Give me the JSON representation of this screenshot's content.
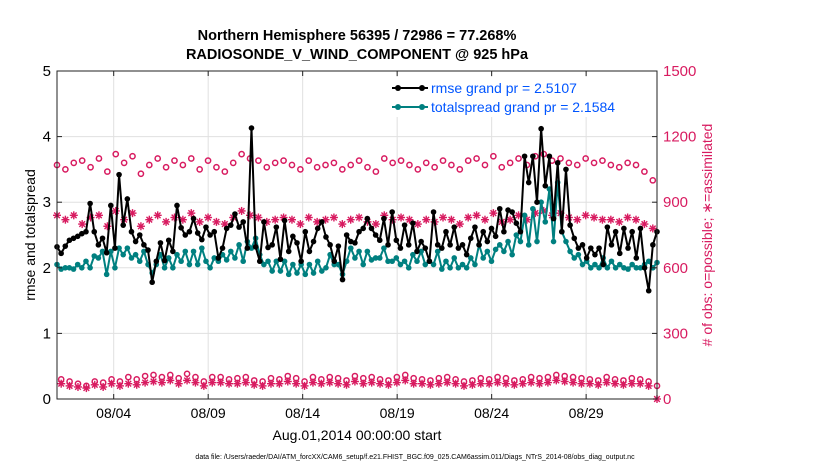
{
  "chart_data": {
    "type": "line",
    "title": "Northern Hemisphere 56395 / 72986 = 77.268%",
    "subtitle": "RADIOSONDE_V_WIND_COMPONENT @ 925 hPa",
    "xlabel": "Aug.01,2014 00:00:00 start",
    "ylabel_left": "rmse and totalspread",
    "ylabel_right": "# of obs: o=possible; ∗=assimilated",
    "footnote": "data file: /Users/raeder/DAI/ATM_forcXX/CAM6_setup/f.e21.FHIST_BGC.f09_025.CAM6assim.011/Diags_NTrS_2014-08/obs_diag_output.nc",
    "x_range": [
      1,
      32.75
    ],
    "x_ticks": [
      4,
      9,
      14,
      19,
      24,
      29
    ],
    "x_tick_labels": [
      "08/04",
      "08/09",
      "08/14",
      "08/19",
      "08/24",
      "08/29"
    ],
    "ylim_left": [
      0,
      5
    ],
    "yticks_left": [
      "0",
      "1",
      "2",
      "3",
      "4",
      "5"
    ],
    "ylim_right": [
      0,
      1500
    ],
    "yticks_right": [
      "0",
      "300",
      "600",
      "900",
      "1200",
      "1500"
    ],
    "legend_position": "top-right",
    "colors": {
      "rmse": "#000000",
      "spread": "#008080",
      "obs": "#d81b60",
      "ylabel_right": "#d81b60",
      "legend_text": "#0055ff"
    },
    "series": [
      {
        "name": "rmse grand pr = 2.5107",
        "axis": "left",
        "values": [
          2.32,
          2.22,
          2.33,
          2.42,
          2.45,
          2.48,
          2.52,
          2.55,
          2.98,
          2.55,
          2.35,
          2.45,
          2.23,
          2.95,
          2.3,
          3.42,
          2.65,
          3.05,
          2.55,
          2.4,
          2.5,
          2.35,
          2.27,
          1.78,
          2.1,
          2.38,
          2.11,
          2.42,
          2.25,
          2.95,
          2.61,
          2.5,
          2.55,
          2.75,
          2.53,
          2.43,
          2.62,
          2.5,
          2.55,
          2.15,
          2.3,
          2.6,
          2.65,
          2.82,
          2.62,
          2.7,
          2.3,
          4.13,
          2.32,
          2.1,
          2.7,
          2.31,
          2.35,
          2.62,
          2.13,
          2.72,
          2.25,
          2.48,
          2.38,
          2.1,
          2.55,
          2.25,
          2.4,
          2.6,
          2.7,
          2.47,
          2.35,
          2.1,
          2.33,
          1.82,
          2.5,
          2.4,
          2.38,
          2.55,
          2.6,
          2.75,
          2.6,
          2.5,
          2.42,
          2.75,
          2.35,
          2.85,
          2.42,
          2.3,
          2.65,
          2.35,
          2.68,
          2.25,
          2.4,
          2.3,
          2.1,
          2.85,
          2.35,
          2.3,
          2.55,
          2.35,
          2.62,
          2.3,
          2.35,
          2.2,
          2.45,
          2.62,
          2.35,
          2.55,
          2.4,
          2.6,
          2.48,
          2.9,
          2.55,
          2.88,
          2.85,
          2.68,
          2.55,
          3.7,
          3.3,
          3.7,
          3.0,
          4.12,
          3.25,
          3.7,
          2.75,
          3.6,
          2.55,
          3.5,
          2.65,
          2.45,
          2.3,
          2.35,
          2.15,
          2.3,
          2.2,
          2.3,
          2.05,
          2.62,
          2.35,
          2.55,
          2.22,
          2.6,
          2.3,
          2.55,
          2.15,
          2.6,
          2.0,
          1.65,
          2.35,
          2.55
        ]
      },
      {
        "name": "totalspread grand pr = 2.1584",
        "axis": "left",
        "values": [
          2.05,
          1.98,
          2.0,
          2.0,
          1.98,
          2.05,
          2.0,
          2.1,
          2.0,
          2.18,
          2.15,
          2.25,
          1.9,
          2.25,
          2.0,
          2.3,
          2.2,
          2.3,
          2.15,
          2.2,
          2.1,
          2.25,
          2.05,
          1.92,
          2.05,
          2.2,
          2.0,
          2.15,
          2.0,
          2.2,
          2.1,
          2.25,
          2.05,
          2.25,
          2.05,
          2.3,
          2.1,
          2.0,
          2.15,
          2.1,
          2.2,
          2.12,
          2.25,
          2.15,
          2.35,
          2.1,
          2.4,
          2.3,
          2.45,
          2.2,
          2.05,
          2.1,
          1.95,
          2.1,
          1.95,
          2.1,
          1.9,
          2.05,
          1.92,
          2.05,
          1.9,
          2.05,
          1.92,
          2.1,
          1.95,
          2.0,
          2.2,
          2.05,
          2.05,
          1.9,
          2.1,
          2.3,
          2.15,
          2.25,
          2.05,
          2.25,
          2.12,
          2.15,
          2.15,
          2.3,
          2.1,
          2.1,
          2.15,
          2.05,
          2.1,
          2.0,
          2.2,
          2.1,
          2.25,
          2.05,
          2.1,
          2.05,
          2.25,
          1.98,
          2.1,
          2.0,
          2.15,
          2.0,
          2.05,
          2.0,
          2.15,
          2.05,
          2.35,
          2.15,
          2.25,
          2.1,
          2.28,
          2.35,
          2.25,
          2.4,
          2.2,
          2.5,
          2.4,
          2.8,
          2.35,
          2.9,
          2.4,
          3.0,
          2.7,
          3.2,
          2.4,
          3.3,
          2.55,
          2.4,
          2.25,
          2.15,
          2.2,
          2.05,
          2.1,
          2.0,
          2.05,
          2.0,
          2.15,
          2.0,
          2.1,
          2.0,
          2.05,
          2.0,
          1.98,
          2.05,
          2.0,
          2.0,
          2.05,
          2.1,
          2.0,
          2.08
        ]
      },
      {
        "name": "possible",
        "axis": "right",
        "marker": "o",
        "values": [
          1070,
          90,
          1050,
          80,
          1080,
          70,
          1090,
          60,
          1060,
          80,
          1100,
          75,
          1040,
          90,
          1120,
          80,
          1080,
          100,
          1110,
          90,
          1030,
          105,
          1070,
          110,
          1100,
          100,
          1060,
          110,
          1090,
          95,
          1070,
          115,
          1100,
          100,
          1050,
          80,
          1090,
          100,
          1060,
          100,
          1040,
          90,
          1080,
          95,
          1120,
          100,
          1100,
          85,
          1090,
          80,
          1060,
          95,
          1080,
          90,
          1090,
          105,
          1070,
          95,
          1050,
          80,
          1090,
          100,
          1060,
          90,
          1070,
          100,
          1080,
          95,
          1050,
          85,
          1070,
          105,
          1090,
          95,
          1060,
          100,
          1040,
          90,
          1100,
          85,
          1080,
          100,
          1090,
          110,
          1070,
          95,
          1050,
          90,
          1080,
          85,
          1060,
          95,
          1090,
          100,
          1070,
          90,
          1050,
          80,
          1090,
          85,
          1100,
          95,
          1070,
          90,
          1110,
          100,
          1060,
          95,
          1080,
          85,
          1100,
          90,
          1070,
          100,
          1110,
          95,
          1120,
          100,
          1090,
          110,
          1100,
          105,
          1080,
          100,
          1070,
          95,
          1100,
          90,
          1080,
          85,
          1090,
          100,
          1070,
          90,
          1060,
          85,
          1080,
          95,
          1070,
          90,
          1040,
          80,
          1000,
          60
        ]
      },
      {
        "name": "assimilated",
        "axis": "right",
        "marker": "*",
        "values": [
          840,
          70,
          820,
          60,
          840,
          55,
          800,
          50,
          830,
          65,
          840,
          55,
          790,
          70,
          860,
          60,
          820,
          70,
          850,
          65,
          790,
          75,
          820,
          80,
          840,
          75,
          810,
          85,
          830,
          70,
          820,
          85,
          850,
          75,
          810,
          60,
          830,
          75,
          810,
          75,
          800,
          70,
          830,
          70,
          860,
          75,
          840,
          65,
          830,
          60,
          810,
          70,
          820,
          70,
          830,
          80,
          820,
          70,
          800,
          60,
          830,
          75,
          810,
          70,
          820,
          75,
          830,
          70,
          800,
          65,
          820,
          80,
          830,
          70,
          810,
          75,
          800,
          70,
          840,
          65,
          820,
          75,
          830,
          85,
          820,
          70,
          800,
          70,
          820,
          65,
          810,
          70,
          830,
          75,
          820,
          70,
          800,
          60,
          830,
          65,
          840,
          70,
          820,
          70,
          850,
          75,
          810,
          70,
          820,
          65,
          840,
          70,
          820,
          75,
          850,
          70,
          860,
          75,
          840,
          85,
          850,
          80,
          830,
          75,
          820,
          70,
          840,
          70,
          830,
          65,
          820,
          75,
          820,
          70,
          810,
          65,
          830,
          70,
          820,
          70,
          800,
          60,
          780,
          0
        ]
      }
    ]
  }
}
